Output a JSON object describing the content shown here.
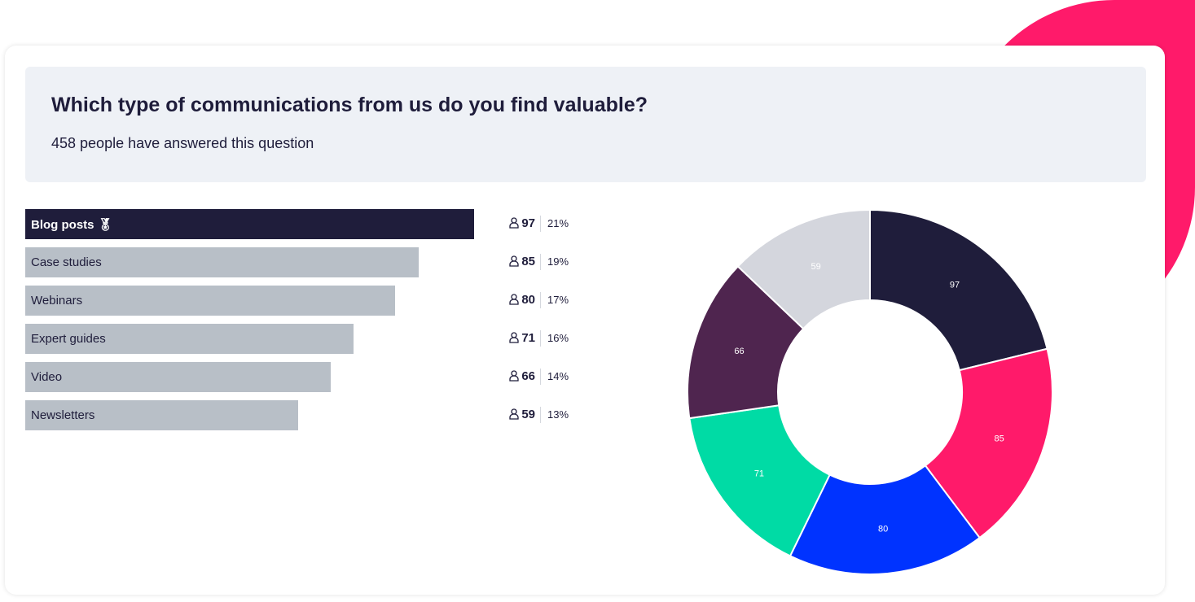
{
  "question": {
    "title": "Which type of communications from us do you find valuable?",
    "subtitle": "458 people have answered this question"
  },
  "colors": {
    "accent": "#ff1a6a",
    "top_bar": "#1f1d3b",
    "bar": "#b8bfc7"
  },
  "chart_data": [
    {
      "type": "bar",
      "orientation": "horizontal",
      "categories": [
        "Blog posts",
        "Case studies",
        "Webinars",
        "Expert guides",
        "Video",
        "Newsletters"
      ],
      "values": [
        97,
        85,
        80,
        71,
        66,
        59
      ],
      "percent_labels": [
        "21%",
        "19%",
        "17%",
        "16%",
        "14%",
        "13%"
      ],
      "top_icon": "medal-icon"
    },
    {
      "type": "pie",
      "donut": true,
      "categories": [
        "Blog posts",
        "Case studies",
        "Webinars",
        "Expert guides",
        "Video",
        "Newsletters"
      ],
      "values": [
        97,
        85,
        80,
        71,
        66,
        59
      ],
      "colors": [
        "#1f1d3b",
        "#ff1a6a",
        "#0033ff",
        "#00dba5",
        "#4f254f",
        "#d4d6dd"
      ]
    }
  ]
}
